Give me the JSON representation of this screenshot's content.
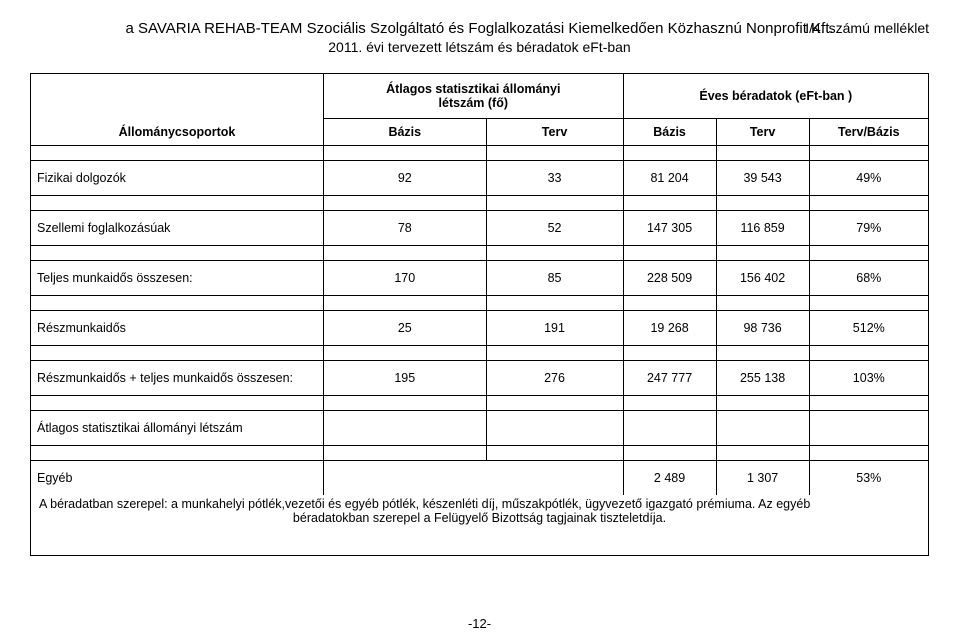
{
  "header": {
    "attachment_label": "I/4. számú melléklet",
    "org_line": "a SAVARIA REHAB-TEAM Szociális Szolgáltató és Foglalkozatási Kiemelkedően Közhasznú Nonprofit Kft.",
    "subtitle": "2011. évi tervezett létszám és béradatok eFt-ban"
  },
  "table": {
    "hdr_stat": "Átlagos statisztikai állományi",
    "hdr_stat2": "létszám (fő)",
    "hdr_eves": "Éves béradatok (eFt-ban )",
    "hdr_groups": "Állománycsoportok",
    "col_bazis": "Bázis",
    "col_terv": "Terv",
    "col_tervbazis": "Terv/Bázis",
    "rows": [
      {
        "label": "Fizikai dolgozók",
        "c1": "92",
        "c2": "33",
        "c3": "81 204",
        "c4": "39 543",
        "c5": "49%"
      },
      {
        "label": "Szellemi foglalkozásúak",
        "c1": "78",
        "c2": "52",
        "c3": "147 305",
        "c4": "116 859",
        "c5": "79%"
      },
      {
        "label": "Teljes munkaidős összesen:",
        "c1": "170",
        "c2": "85",
        "c3": "228 509",
        "c4": "156 402",
        "c5": "68%"
      },
      {
        "label": "Részmunkaidős",
        "c1": "25",
        "c2": "191",
        "c3": "19 268",
        "c4": "98 736",
        "c5": "512%"
      },
      {
        "label": "Részmunkaidős + teljes munkaidős összesen:",
        "c1": "195",
        "c2": "276",
        "c3": "247 777",
        "c4": "255 138",
        "c5": "103%"
      },
      {
        "label": "Átlagos statisztikai állományi létszám",
        "c1": "",
        "c2": "",
        "c3": "",
        "c4": "",
        "c5": ""
      }
    ],
    "egyeb_label": "Egyéb",
    "egyeb_c3": "2 489",
    "egyeb_c4": "1 307",
    "egyeb_c5": "53%",
    "note_line1": "A béradatban szerepel: a munkahelyi pótlék,vezetői és egyéb pótlék, készenléti díj, műszakpótlék, ügyvezető igazgató prémiuma.    Az egyéb",
    "note_line2": "béradatokban szerepel a Felügyelő Bizottság tagjainak tiszteletdíja."
  },
  "page_number": "-12-"
}
